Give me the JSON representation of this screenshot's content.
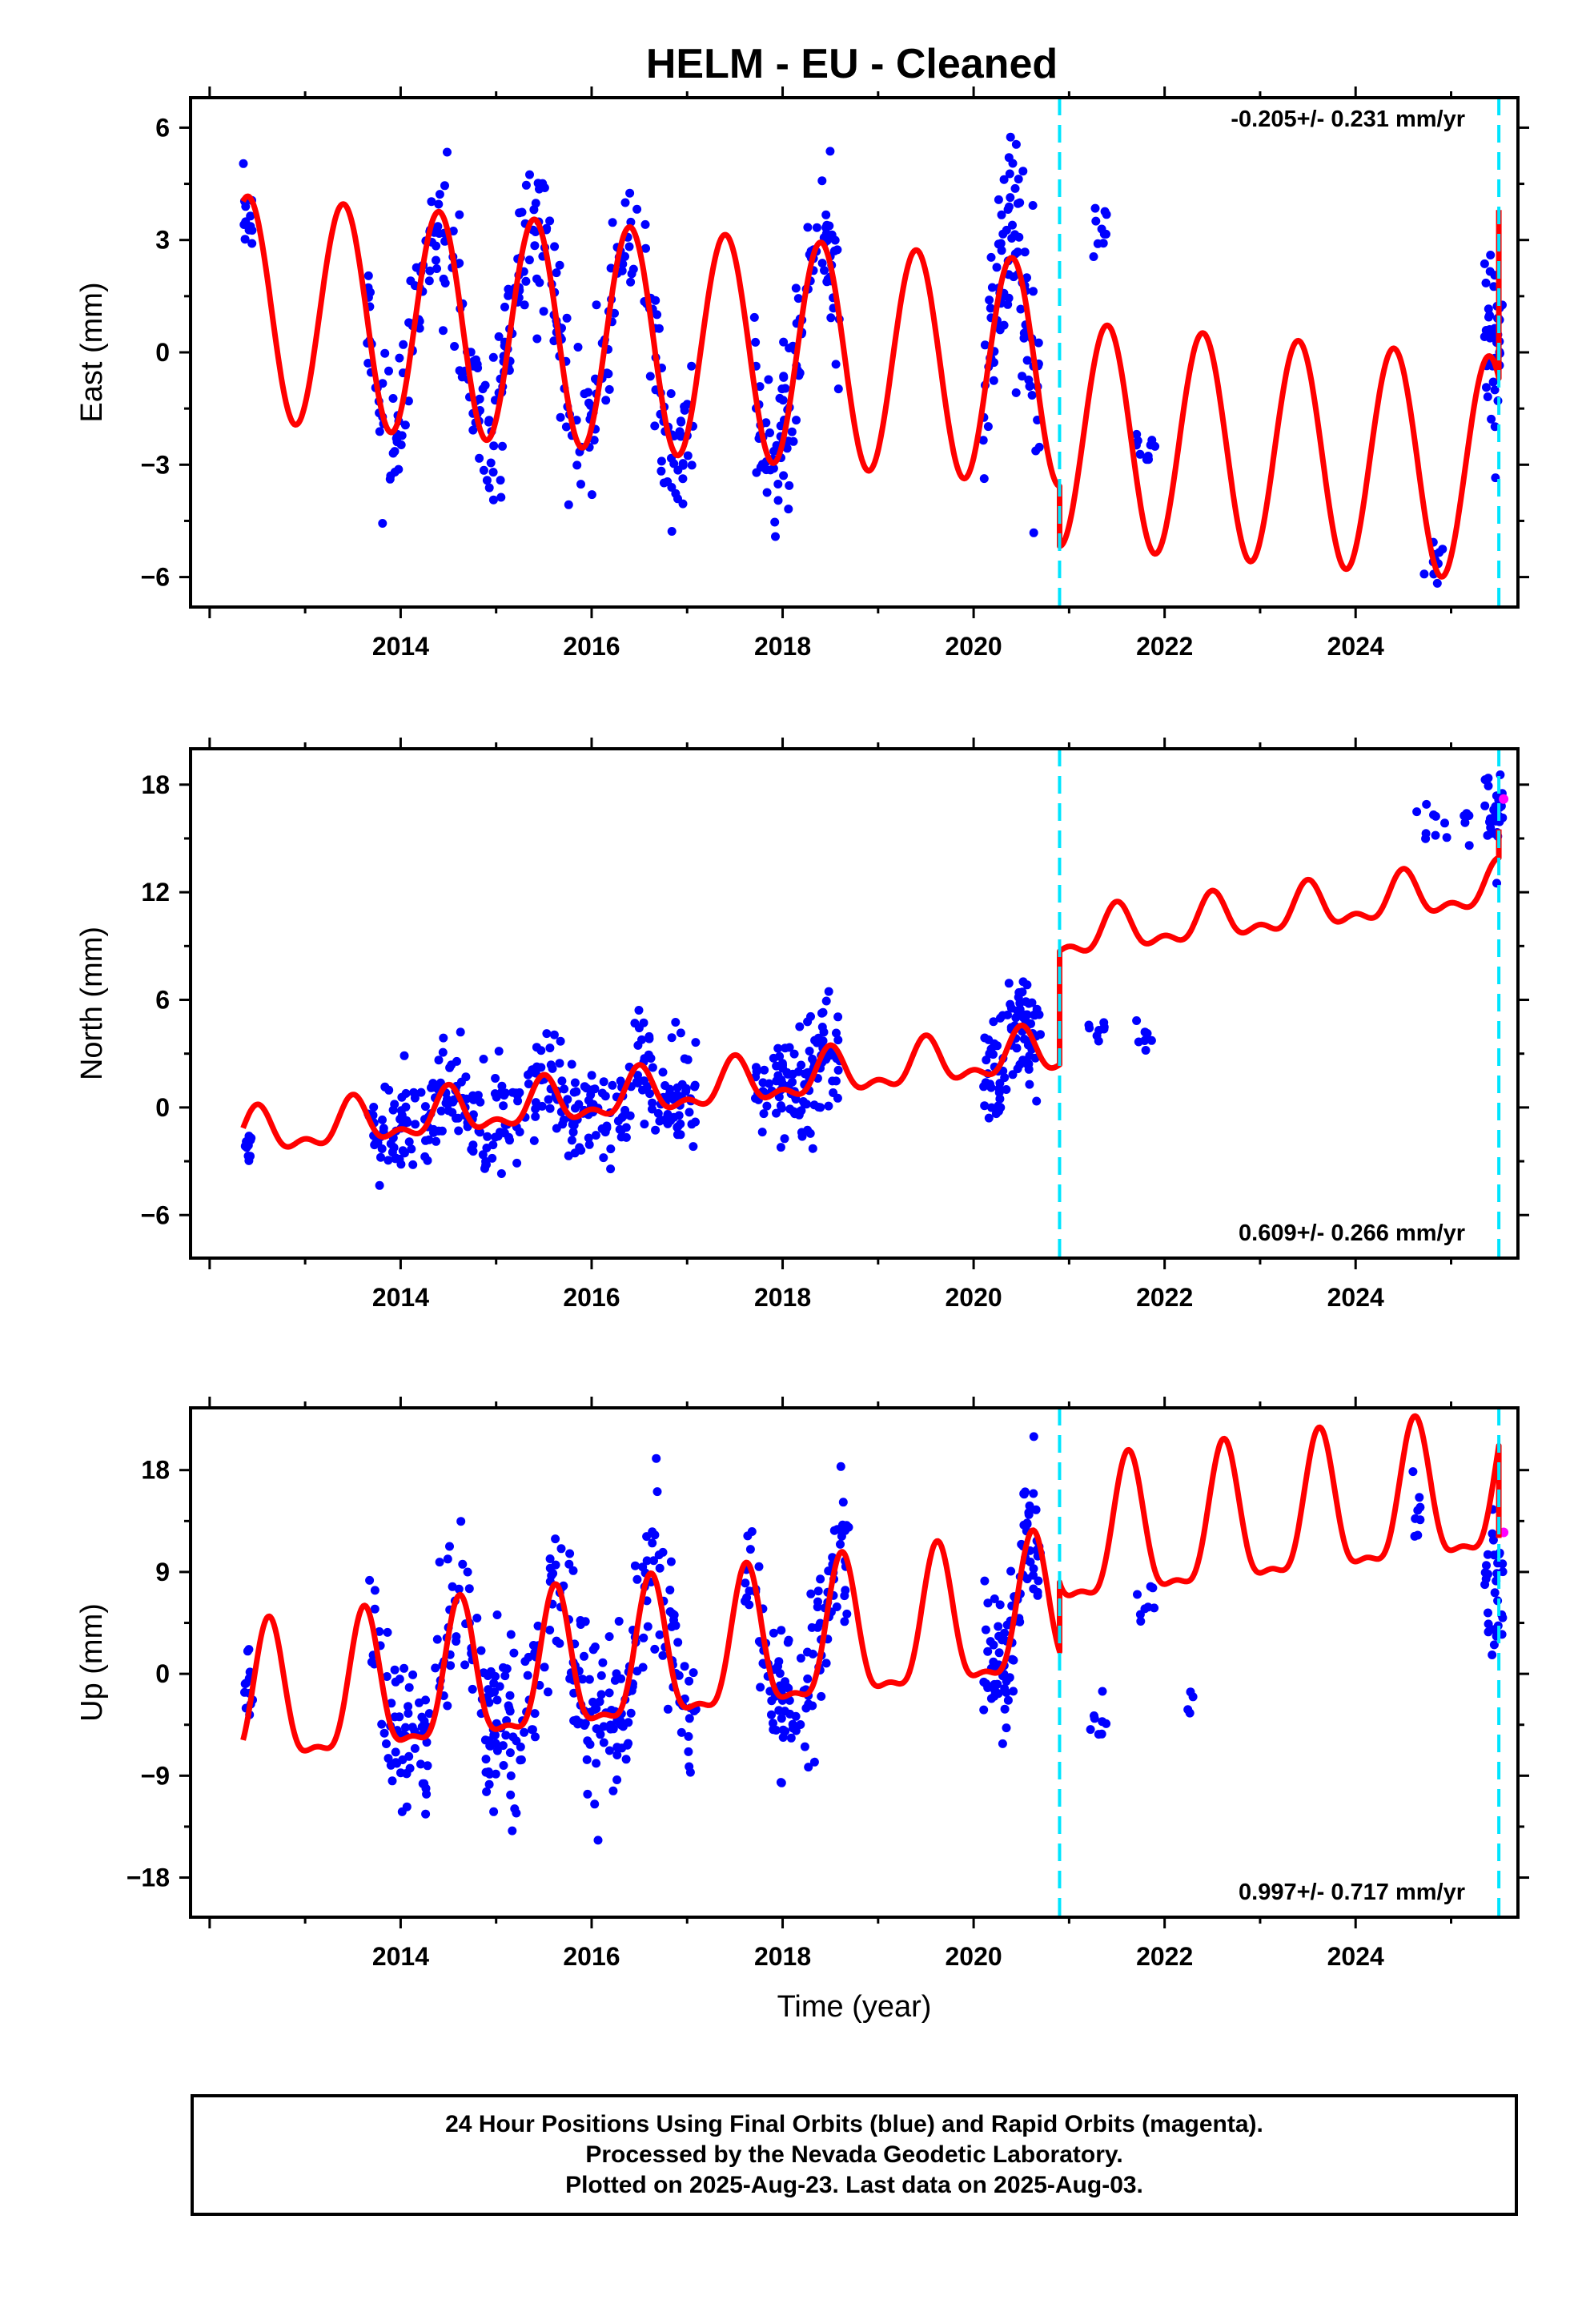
{
  "title": "HELM  - EU - Cleaned",
  "colors": {
    "final_orbits": "#0000ff",
    "rapid_orbits": "#ff00ff",
    "model": "#ff0000",
    "event_lines": "#00e5ff"
  },
  "footer": {
    "line1": "24 Hour Positions Using Final Orbits (blue) and Rapid Orbits (magenta).",
    "line2": "Processed by the Nevada Geodetic Laboratory.",
    "line3": "Plotted on 2025-Aug-23. Last data on 2025-Aug-03."
  },
  "chart_data": [
    {
      "type": "scatter",
      "panel": "east",
      "ylabel": "East (mm)",
      "xlabel": "",
      "xlim": [
        2011.8,
        2025.7
      ],
      "ylim": [
        -6.8,
        6.8
      ],
      "x_ticks": [
        2014,
        2016,
        2018,
        2020,
        2022,
        2024
      ],
      "y_ticks": [
        -6,
        -3,
        0,
        3,
        6
      ],
      "y_tick_labels": [
        "−6",
        "−3",
        "0",
        "3",
        "6"
      ],
      "rate_label": "-0.205+/- 0.231 mm/yr",
      "rate_position": "top-right",
      "event_lines": [
        2020.9,
        2025.5
      ],
      "model": {
        "segments": [
          {
            "x_start": 2012.35,
            "x_end": 2020.9,
            "offset": 1.25,
            "slope": -0.205,
            "annual": 3.0,
            "phase_peak": 0.4,
            "semiannual": 0.0
          },
          {
            "x_start": 2020.9,
            "x_end": 2025.5,
            "offset": -0.35,
            "slope": -0.205,
            "annual": 3.0,
            "phase_peak": 0.4,
            "semiannual": 0.0
          }
        ],
        "final_jump": {
          "x": 2025.5,
          "from": -1.6,
          "to": 3.8
        }
      },
      "data_clusters": [
        {
          "x_start": 2012.35,
          "x_end": 2012.45,
          "y_center": 3.0,
          "y_spread": 1.2,
          "follow_model": false,
          "density": 12
        },
        {
          "x_start": 2013.65,
          "x_end": 2017.1,
          "y_center": 0.0,
          "y_spread": 1.1,
          "follow_model": true,
          "density": 320
        },
        {
          "x_start": 2017.7,
          "x_end": 2018.6,
          "y_center": 0.0,
          "y_spread": 1.1,
          "follow_model": true,
          "density": 110
        },
        {
          "x_start": 2020.1,
          "x_end": 2020.7,
          "y_center": 0.0,
          "y_spread": 1.4,
          "follow_model": true,
          "density": 90
        },
        {
          "x_start": 2021.2,
          "x_end": 2021.4,
          "y_center": 3.2,
          "y_spread": 0.7,
          "follow_model": false,
          "density": 10
        },
        {
          "x_start": 2021.7,
          "x_end": 2021.9,
          "y_center": -2.8,
          "y_spread": 0.5,
          "follow_model": false,
          "density": 10
        },
        {
          "x_start": 2024.7,
          "x_end": 2025.0,
          "y_center": -5.5,
          "y_spread": 0.5,
          "follow_model": false,
          "density": 10
        },
        {
          "x_start": 2025.35,
          "x_end": 2025.55,
          "y_center": 0.5,
          "y_spread": 2.5,
          "follow_model": false,
          "density": 40
        }
      ]
    },
    {
      "type": "scatter",
      "panel": "north",
      "ylabel": "North (mm)",
      "xlabel": "",
      "xlim": [
        2011.8,
        2025.7
      ],
      "ylim": [
        -8.4,
        20.0
      ],
      "x_ticks": [
        2014,
        2016,
        2018,
        2020,
        2022,
        2024
      ],
      "y_ticks": [
        -6,
        0,
        6,
        12,
        18
      ],
      "y_tick_labels": [
        "−6",
        "0",
        "6",
        "12",
        "18"
      ],
      "rate_label": "0.609+/- 0.266 mm/yr",
      "rate_position": "bottom-right",
      "event_lines": [
        2020.9,
        2025.5
      ],
      "model": {
        "segments": [
          {
            "x_start": 2012.35,
            "x_end": 2020.9,
            "offset": -1.8,
            "slope": 0.55,
            "annual": 1.1,
            "phase_peak": 0.5,
            "semiannual": 0.6
          },
          {
            "x_start": 2020.9,
            "x_end": 2025.5,
            "offset": 4.0,
            "slope": 0.609,
            "annual": 1.1,
            "phase_peak": 0.5,
            "semiannual": 0.6
          }
        ],
        "final_jump": {
          "x": 2025.5,
          "from": 13.6,
          "to": 15.5
        }
      },
      "data_clusters": [
        {
          "x_start": 2012.35,
          "x_end": 2012.45,
          "y_center": -2.3,
          "y_spread": 0.8,
          "follow_model": false,
          "density": 10
        },
        {
          "x_start": 2013.65,
          "x_end": 2017.1,
          "y_center": 0.0,
          "y_spread": 1.5,
          "follow_model": true,
          "density": 320
        },
        {
          "x_start": 2017.7,
          "x_end": 2018.6,
          "y_center": 0.0,
          "y_spread": 1.5,
          "follow_model": true,
          "density": 110
        },
        {
          "x_start": 2020.1,
          "x_end": 2020.7,
          "y_center": 0.0,
          "y_spread": 1.5,
          "follow_model": true,
          "density": 90
        },
        {
          "x_start": 2021.2,
          "x_end": 2021.4,
          "y_center": 4.0,
          "y_spread": 0.6,
          "follow_model": false,
          "density": 8
        },
        {
          "x_start": 2021.7,
          "x_end": 2021.9,
          "y_center": 3.8,
          "y_spread": 0.6,
          "follow_model": false,
          "density": 8
        },
        {
          "x_start": 2024.6,
          "x_end": 2025.2,
          "y_center": 16.0,
          "y_spread": 1.0,
          "follow_model": false,
          "density": 14
        },
        {
          "x_start": 2025.35,
          "x_end": 2025.55,
          "y_center": 16.5,
          "y_spread": 1.5,
          "follow_model": false,
          "density": 30
        }
      ],
      "rapid_points": [
        {
          "x": 2025.55,
          "y": 17.2
        }
      ]
    },
    {
      "type": "scatter",
      "panel": "up",
      "ylabel": "Up (mm)",
      "xlabel": "Time (year)",
      "xlim": [
        2011.8,
        2025.7
      ],
      "ylim": [
        -21.5,
        23.5
      ],
      "x_ticks": [
        2014,
        2016,
        2018,
        2020,
        2022,
        2024
      ],
      "y_ticks": [
        -18,
        -9,
        0,
        9,
        18
      ],
      "y_tick_labels": [
        "−18",
        "−9",
        "0",
        "9",
        "18"
      ],
      "rate_label": "0.997+/- 0.717 mm/yr",
      "rate_position": "bottom-right",
      "event_lines": [
        2020.9,
        2025.5
      ],
      "model": {
        "segments": [
          {
            "x_start": 2012.35,
            "x_end": 2020.9,
            "offset": -3.5,
            "slope": 0.95,
            "annual": 6.0,
            "phase_peak": 0.62,
            "semiannual": 2.0
          },
          {
            "x_start": 2020.9,
            "x_end": 2025.5,
            "offset": 2.2,
            "slope": 0.997,
            "annual": 6.0,
            "phase_peak": 0.62,
            "semiannual": 2.0
          }
        ],
        "final_jump": {
          "x": 2025.5,
          "from": 3.0,
          "to": 12.0
        }
      },
      "data_clusters": [
        {
          "x_start": 2012.35,
          "x_end": 2012.45,
          "y_center": -1.0,
          "y_spread": 3.5,
          "follow_model": false,
          "density": 12
        },
        {
          "x_start": 2013.65,
          "x_end": 2017.1,
          "y_center": 0.0,
          "y_spread": 3.5,
          "follow_model": true,
          "density": 340
        },
        {
          "x_start": 2017.6,
          "x_end": 2018.7,
          "y_center": 0.0,
          "y_spread": 3.5,
          "follow_model": true,
          "density": 120
        },
        {
          "x_start": 2020.1,
          "x_end": 2020.7,
          "y_center": 0.0,
          "y_spread": 3.0,
          "follow_model": true,
          "density": 90
        },
        {
          "x_start": 2021.2,
          "x_end": 2021.4,
          "y_center": -4.0,
          "y_spread": 2.5,
          "follow_model": false,
          "density": 8
        },
        {
          "x_start": 2021.7,
          "x_end": 2021.9,
          "y_center": 6.0,
          "y_spread": 2.0,
          "follow_model": false,
          "density": 8
        },
        {
          "x_start": 2022.2,
          "x_end": 2022.3,
          "y_center": -2.5,
          "y_spread": 1.5,
          "follow_model": false,
          "density": 4
        },
        {
          "x_start": 2024.6,
          "x_end": 2024.7,
          "y_center": 14.0,
          "y_spread": 4.0,
          "follow_model": false,
          "density": 8
        },
        {
          "x_start": 2025.35,
          "x_end": 2025.55,
          "y_center": 8.0,
          "y_spread": 6.0,
          "follow_model": false,
          "density": 30
        }
      ],
      "rapid_points": [
        {
          "x": 2025.55,
          "y": 12.5
        }
      ]
    }
  ]
}
